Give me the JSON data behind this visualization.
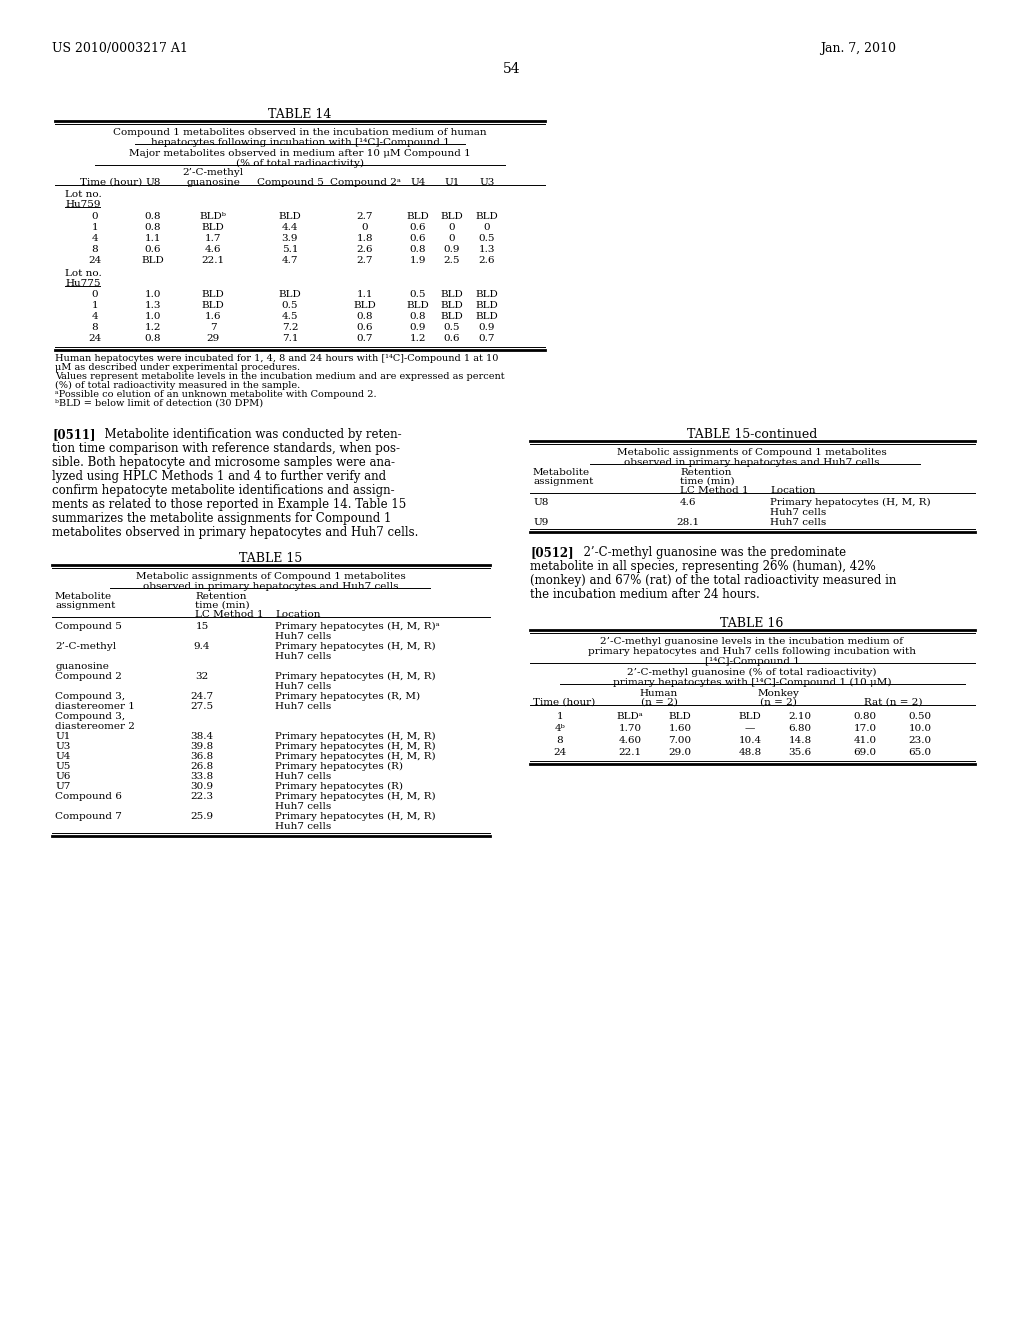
{
  "page_header_left": "US 2010/0003217 A1",
  "page_header_right": "Jan. 7, 2010",
  "page_number": "54",
  "bg_color": "#ffffff",
  "table14_title": "TABLE 14",
  "table14_subtitle1": "Compound 1 metabolites observed in the incubation medium of human",
  "table14_subtitle2": "hepatocytes following incubation with [¹⁴C]-Compound 1",
  "table14_subheader1": "Major metabolites observed in medium after 10 μM Compound 1",
  "table14_subheader2": "(% of total radioactivity)",
  "table14_lot1_label1": "Lot no.",
  "table14_lot1_label2": "Hu759",
  "table14_lot1_data": [
    [
      "0",
      "0.8",
      "BLDᵇ",
      "BLD",
      "2.7",
      "BLD",
      "BLD",
      "BLD"
    ],
    [
      "1",
      "0.8",
      "BLD",
      "4.4",
      "0",
      "0.6",
      "0",
      "0"
    ],
    [
      "4",
      "1.1",
      "1.7",
      "3.9",
      "1.8",
      "0.6",
      "0",
      "0.5"
    ],
    [
      "8",
      "0.6",
      "4.6",
      "5.1",
      "2.6",
      "0.8",
      "0.9",
      "1.3"
    ],
    [
      "24",
      "BLD",
      "22.1",
      "4.7",
      "2.7",
      "1.9",
      "2.5",
      "2.6"
    ]
  ],
  "table14_lot2_label1": "Lot no.",
  "table14_lot2_label2": "Hu775",
  "table14_lot2_data": [
    [
      "0",
      "1.0",
      "BLD",
      "BLD",
      "1.1",
      "0.5",
      "BLD",
      "BLD"
    ],
    [
      "1",
      "1.3",
      "BLD",
      "0.5",
      "BLD",
      "BLD",
      "BLD",
      "BLD"
    ],
    [
      "4",
      "1.0",
      "1.6",
      "4.5",
      "0.8",
      "0.8",
      "BLD",
      "BLD"
    ],
    [
      "8",
      "1.2",
      "7",
      "7.2",
      "0.6",
      "0.9",
      "0.5",
      "0.9"
    ],
    [
      "24",
      "0.8",
      "29",
      "7.1",
      "0.7",
      "1.2",
      "0.6",
      "0.7"
    ]
  ],
  "table14_footnotes": [
    "Human hepatocytes were incubated for 1, 4, 8 and 24 hours with [¹⁴C]-Compound 1 at 10",
    "μM as described under experimental procedures.",
    "Values represent metabolite levels in the incubation medium and are expressed as percent",
    "(%) of total radioactivity measured in the sample.",
    "ᵃPossible co elution of an unknown metabolite with Compound 2.",
    "ᵇBLD = below limit of detection (30 DPM)"
  ],
  "para0511_lines": [
    "[0511]   Metabolite identification was conducted by reten-",
    "tion time comparison with reference standards, when pos-",
    "sible. Both hepatocyte and microsome samples were ana-",
    "lyzed using HPLC Methods 1 and 4 to further verify and",
    "confirm hepatocyte metabolite identifications and assign-",
    "ments as related to those reported in Example 14. Table 15",
    "summarizes the metabolite assignments for Compound 1",
    "metabolites observed in primary hepatocytes and Huh7 cells."
  ],
  "table15_title": "TABLE 15",
  "table15_subtitle1": "Metabolic assignments of Compound 1 metabolites",
  "table15_subtitle2": "observed in primary hepatocytes and Huh7 cells",
  "table15_data": [
    [
      "Compound 5",
      "15",
      "Primary hepatocytes (H, M, R)ᵃ",
      "Huh7 cells"
    ],
    [
      "2’-C-methyl",
      "9.4",
      "Primary hepatocytes (H, M, R)",
      "Huh7 cells"
    ],
    [
      "guanosine",
      "",
      "",
      ""
    ],
    [
      "Compound 2",
      "32",
      "Primary hepatocytes (H, M, R)",
      "Huh7 cells"
    ],
    [
      "Compound 3,",
      "24.7",
      "Primary hepatocytes (R, M)",
      ""
    ],
    [
      "diastereomer 1",
      "27.5",
      "Huh7 cells",
      ""
    ],
    [
      "Compound 3,",
      "",
      "",
      ""
    ],
    [
      "diastereomer 2",
      "",
      "",
      ""
    ],
    [
      "U1",
      "38.4",
      "Primary hepatocytes (H, M, R)",
      ""
    ],
    [
      "U3",
      "39.8",
      "Primary hepatocytes (H, M, R)",
      ""
    ],
    [
      "U4",
      "36.8",
      "Primary hepatocytes (H, M, R)",
      ""
    ],
    [
      "U5",
      "26.8",
      "Primary hepatocytes (R)",
      ""
    ],
    [
      "U6",
      "33.8",
      "Huh7 cells",
      ""
    ],
    [
      "U7",
      "30.9",
      "Primary hepatocytes (R)",
      ""
    ],
    [
      "Compound 6",
      "22.3",
      "Primary hepatocytes (H, M, R)",
      "Huh7 cells"
    ],
    [
      "Compound 7",
      "25.9",
      "Primary hepatocytes (H, M, R)",
      "Huh7 cells"
    ]
  ],
  "table15cont_title": "TABLE 15-continued",
  "table15cont_subtitle1": "Metabolic assignments of Compound 1 metabolites",
  "table15cont_subtitle2": "observed in primary hepatocytes and Huh7 cells",
  "table15cont_data": [
    [
      "U8",
      "4.6",
      "Primary hepatocytes (H, M, R)",
      "Huh7 cells"
    ],
    [
      "U9",
      "28.1",
      "Huh7 cells",
      ""
    ]
  ],
  "para0512_lines": [
    "[0512]   2’-C-methyl guanosine was the predominate",
    "metabolite in all species, representing 26% (human), 42%",
    "(monkey) and 67% (rat) of the total radioactivity measured in",
    "the incubation medium after 24 hours."
  ],
  "table16_title": "TABLE 16",
  "table16_subtitle1": "2’-C-methyl guanosine levels in the incubation medium of",
  "table16_subtitle2": "primary hepatocytes and Huh7 cells following incubation with",
  "table16_subtitle3": "[¹⁴C]-Compound 1",
  "table16_subheader1": "2’-C-methyl guanosine (% of total radioactivity)",
  "table16_subheader2": "primary hepatocytes with [¹⁴C]-Compound 1 (10 μM)",
  "table16_data": [
    [
      "1",
      "BLDᵃ",
      "BLD",
      "BLD",
      "2.10",
      "0.80",
      "0.50"
    ],
    [
      "4ᵇ",
      "1.70",
      "1.60",
      "—",
      "6.80",
      "17.0",
      "10.0"
    ],
    [
      "8",
      "4.60",
      "7.00",
      "10.4",
      "14.8",
      "41.0",
      "23.0"
    ],
    [
      "24",
      "22.1",
      "29.0",
      "48.8",
      "35.6",
      "69.0",
      "65.0"
    ]
  ]
}
